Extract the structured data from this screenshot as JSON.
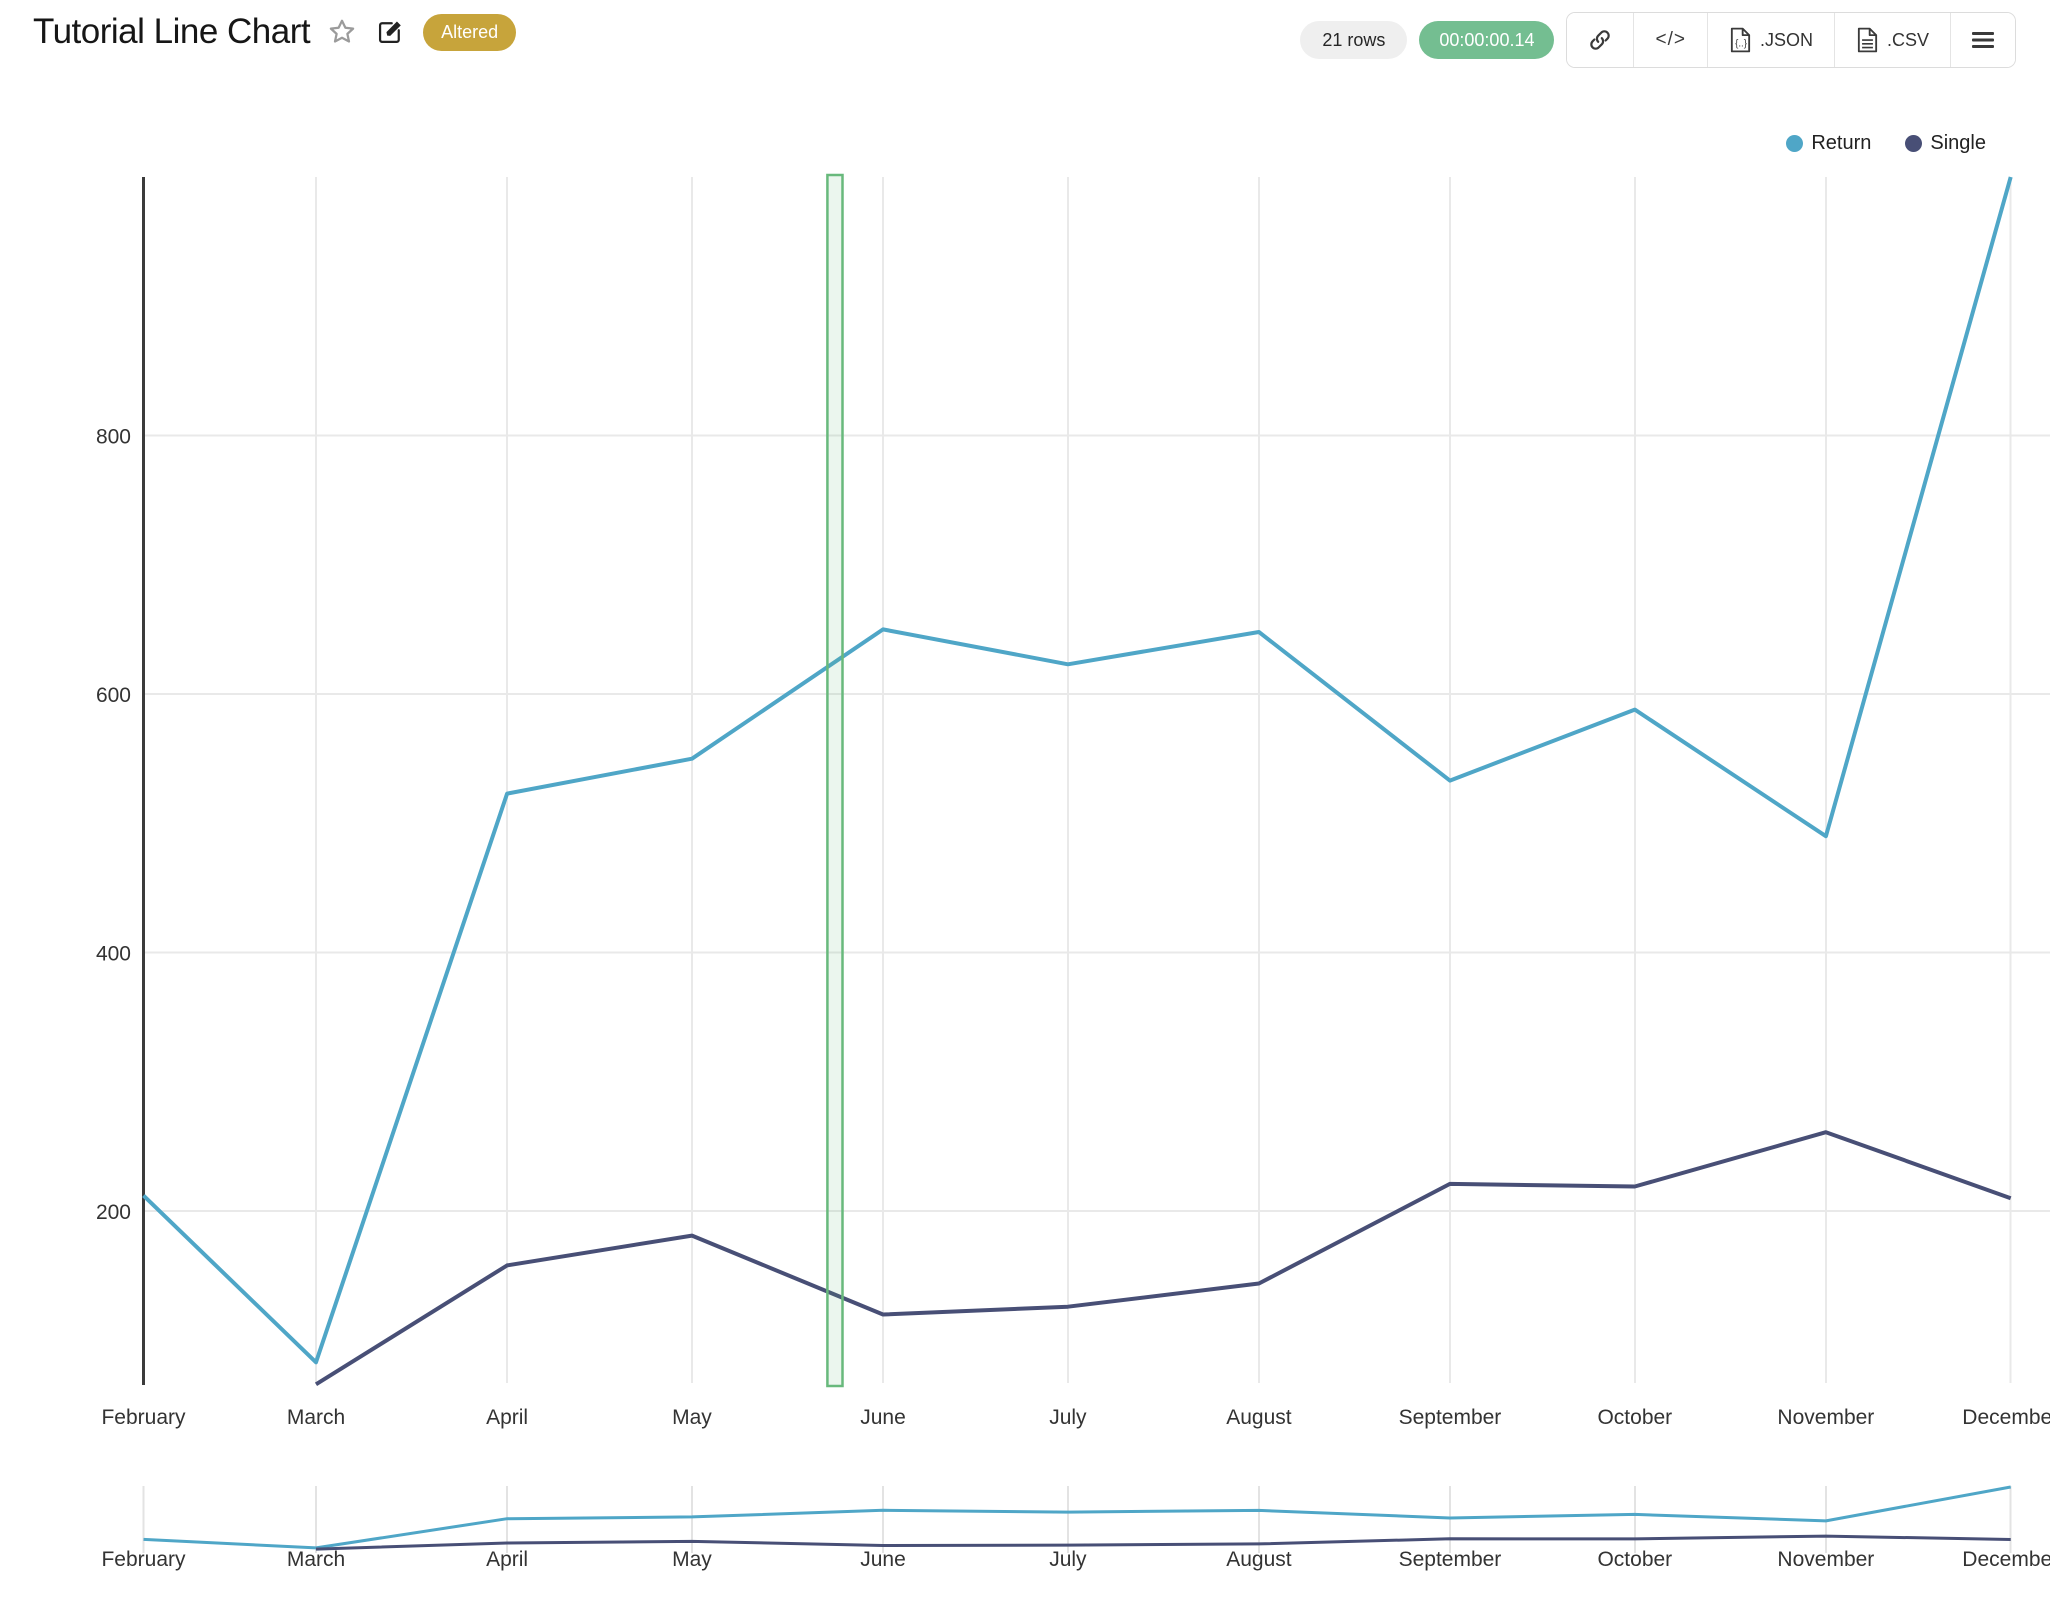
{
  "header": {
    "title": "Tutorial Line Chart",
    "status_badge": "Altered"
  },
  "toolbar": {
    "rows_label": "21 rows",
    "duration": "00:00:00.14",
    "embed_label": "</>",
    "export_json_label": ".JSON",
    "export_csv_label": ".CSV"
  },
  "icons": {
    "favorite": "star-outline-icon",
    "edit": "pencil-square-icon",
    "share": "link-icon",
    "embed": "code-icon",
    "json_file": "file-json-icon",
    "csv_file": "file-lines-icon",
    "menu": "hamburger-icon"
  },
  "colors": {
    "badge_gold": "#C7A43B",
    "timer_green": "#74BE91",
    "rows_gray": "#EFEFEF",
    "gridline": "#E9E9E9",
    "rangeslider_gridline": "#E3E3E3",
    "axis_line": "#3B3B3B",
    "return_series": "#4FA6C7",
    "single_series": "#484F76",
    "band_border": "#68B97C",
    "band_fill": "rgba(104,185,124,0.13)"
  },
  "legend": [
    {
      "name": "Return",
      "color": "#4FA6C7"
    },
    {
      "name": "Single",
      "color": "#484F76"
    }
  ],
  "chart_data": {
    "type": "line",
    "title": "Tutorial Line Chart",
    "xlabel": "",
    "ylabel": "",
    "x_axis_type": "date (monthly, month-start ticks)",
    "x_tick_labels": [
      "February",
      "March",
      "April",
      "May",
      "June",
      "July",
      "August",
      "September",
      "October",
      "November",
      "December"
    ],
    "y_ticks": [
      200,
      400,
      600,
      800
    ],
    "y_range": [
      67,
      1000
    ],
    "grid": true,
    "legend_position": "top-right",
    "series": [
      {
        "name": "Return",
        "color": "#4FA6C7",
        "start_index": 0,
        "values": [
          212,
          83,
          523,
          550,
          650,
          623,
          648,
          533,
          588,
          490,
          1000
        ]
      },
      {
        "name": "Single",
        "color": "#484F76",
        "start_index": 1,
        "values": [
          66,
          158,
          181,
          120,
          126,
          144,
          221,
          219,
          261,
          210
        ]
      }
    ],
    "highlight_band": {
      "between_months": [
        "May",
        "June"
      ],
      "start_fraction": 0.709,
      "end_fraction": 0.788,
      "border_color": "#68B97C",
      "fill_color": "rgba(104,185,124,0.13)"
    },
    "has_rangeslider": true
  }
}
